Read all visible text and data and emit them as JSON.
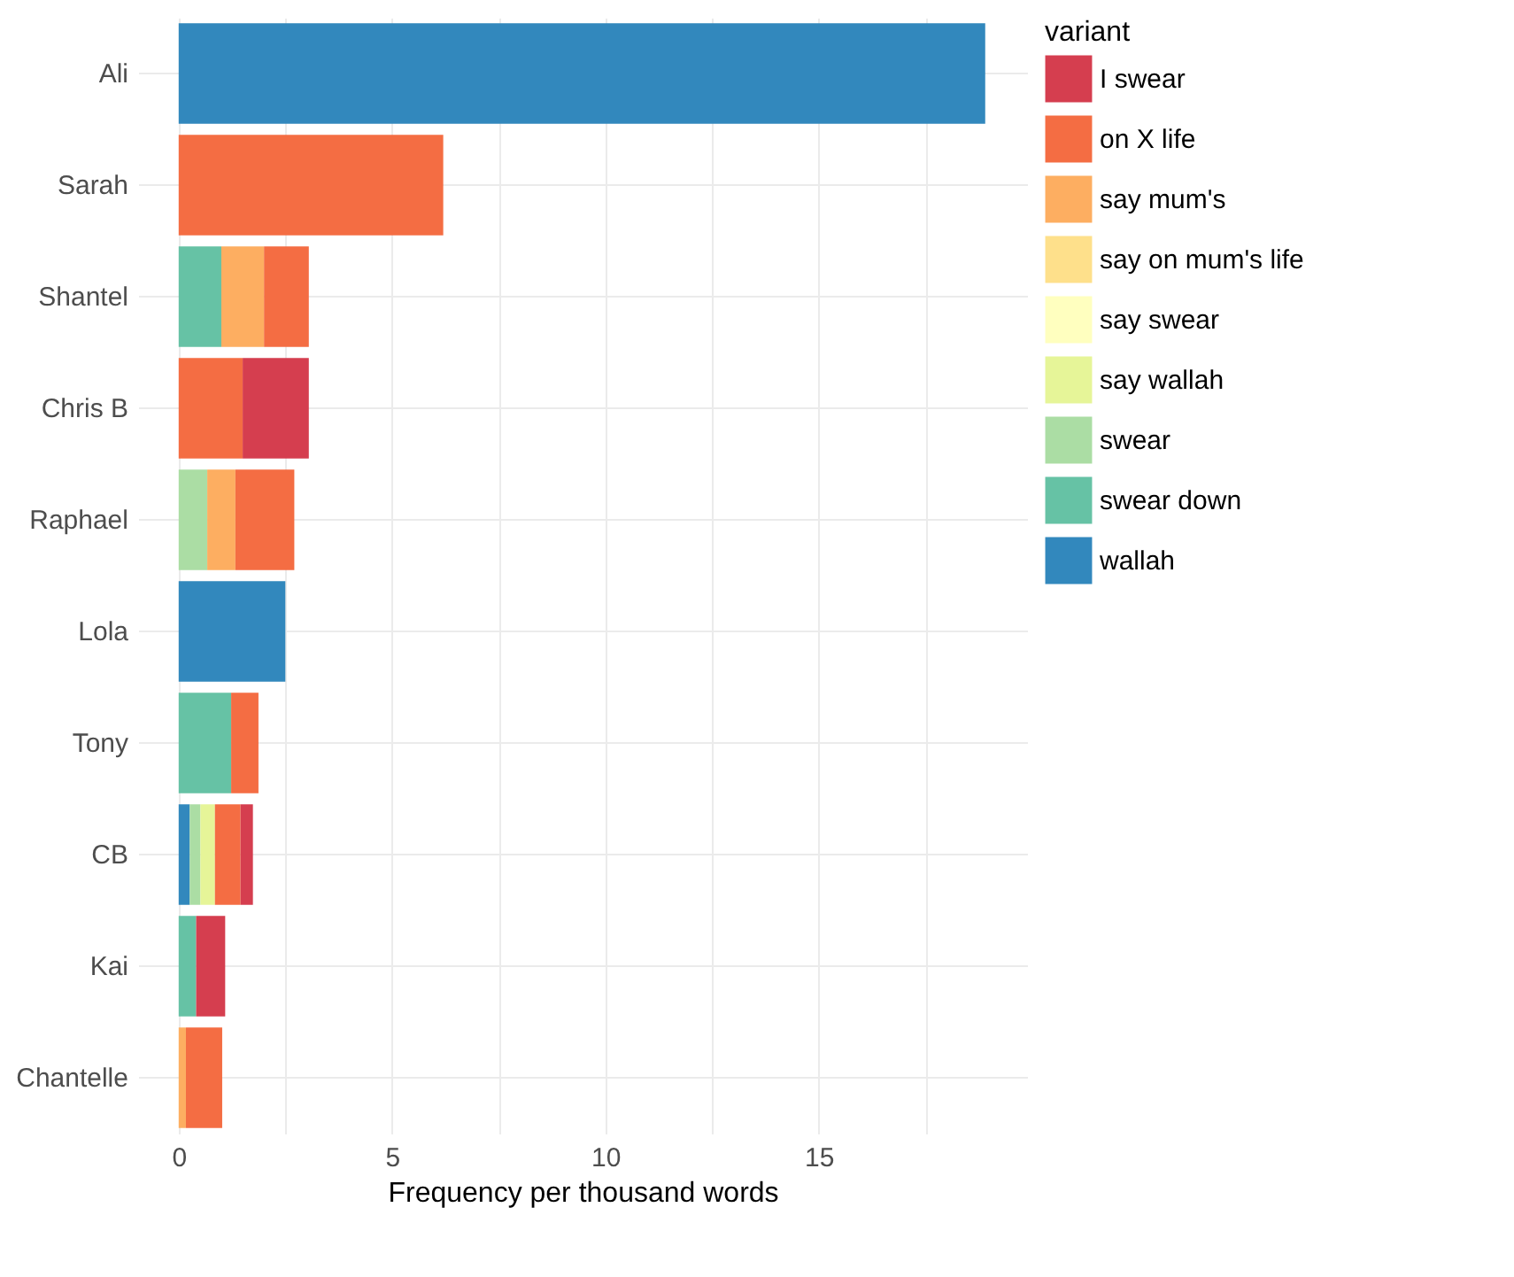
{
  "chart_data": {
    "type": "bar",
    "orientation": "horizontal",
    "stacked": true,
    "xlabel": "Frequency per thousand words",
    "legend_title": "variant",
    "legend": "right",
    "grid": true,
    "categories": [
      "Ali",
      "Sarah",
      "Shantel",
      "Chris B",
      "Raphael",
      "Lola",
      "Tony",
      "CB",
      "Kai",
      "Chantelle"
    ],
    "xlim": [
      -0.95,
      19.88
    ],
    "xticks": [
      0,
      {
        "value": 2.5,
        "label": null
      },
      5,
      {
        "value": 7.5,
        "label": null
      },
      10,
      {
        "value": 12.5,
        "label": null
      },
      15,
      {
        "value": 17.5,
        "label": null
      }
    ],
    "series": [
      {
        "name": "wallah",
        "color": "#3288bd",
        "values": [
          18.9,
          null,
          null,
          null,
          null,
          2.5,
          null,
          0.26,
          null,
          null
        ]
      },
      {
        "name": "swear down",
        "color": "#66c2a5",
        "values": [
          null,
          null,
          1.0,
          null,
          null,
          null,
          1.23,
          null,
          0.41,
          null
        ]
      },
      {
        "name": "swear",
        "color": "#abdda4",
        "values": [
          null,
          null,
          null,
          null,
          0.67,
          null,
          null,
          0.25,
          null,
          null
        ]
      },
      {
        "name": "say wallah",
        "color": "#e6f598",
        "values": [
          null,
          null,
          null,
          null,
          null,
          null,
          null,
          0.34,
          null,
          null
        ]
      },
      {
        "name": "say swear",
        "color": "#ffffbf",
        "values": [
          null,
          null,
          null,
          null,
          null,
          null,
          null,
          null,
          null,
          null
        ]
      },
      {
        "name": "say on mum's life",
        "color": "#fee08b",
        "values": [
          null,
          null,
          null,
          null,
          null,
          null,
          null,
          null,
          null,
          null
        ]
      },
      {
        "name": "say mum's",
        "color": "#fdae61",
        "values": [
          null,
          null,
          1.0,
          null,
          0.66,
          null,
          null,
          null,
          null,
          0.17
        ]
      },
      {
        "name": "on X life",
        "color": "#f46d43",
        "values": [
          null,
          6.2,
          1.05,
          1.5,
          1.38,
          null,
          0.64,
          0.6,
          null,
          0.85
        ]
      },
      {
        "name": "I swear",
        "color": "#d53e4f",
        "values": [
          null,
          null,
          null,
          1.55,
          null,
          null,
          null,
          0.29,
          0.68,
          null
        ]
      }
    ]
  }
}
